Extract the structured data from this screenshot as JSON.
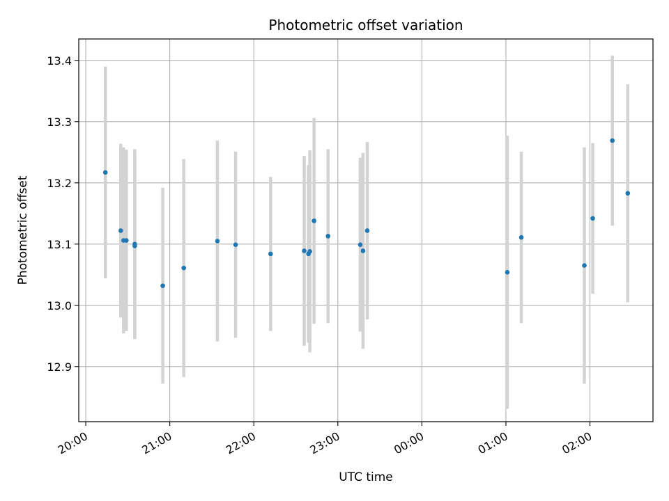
{
  "chart_data": {
    "type": "scatter",
    "title": "Photometric offset variation",
    "xlabel": "UTC time",
    "ylabel": "Photometric offset",
    "xlim": [
      "19:55",
      "02:45"
    ],
    "ylim": [
      12.81,
      13.435
    ],
    "x_ticks": [
      "20:00",
      "21:00",
      "22:00",
      "23:00",
      "00:00",
      "01:00",
      "02:00"
    ],
    "y_ticks": [
      12.9,
      13.0,
      13.1,
      13.2,
      13.3,
      13.4
    ],
    "y_tick_labels": [
      "12.9",
      "13.0",
      "13.1",
      "13.2",
      "13.3",
      "13.4"
    ],
    "grid": true,
    "colors": {
      "point": "#1f77b4",
      "errorbar": "#d3d3d3",
      "grid": "#b0b0b0"
    },
    "points": [
      {
        "x": "20:14",
        "y": 13.217,
        "err": 0.173
      },
      {
        "x": "20:25",
        "y": 13.122,
        "err": 0.142
      },
      {
        "x": "20:27",
        "y": 13.106,
        "err": 0.152
      },
      {
        "x": "20:29",
        "y": 13.106,
        "err": 0.148
      },
      {
        "x": "20:35",
        "y": 13.1,
        "err": 0.155
      },
      {
        "x": "20:35",
        "y": 13.097,
        "err": 0.15
      },
      {
        "x": "20:55",
        "y": 13.032,
        "err": 0.16
      },
      {
        "x": "21:10",
        "y": 13.061,
        "err": 0.178
      },
      {
        "x": "21:34",
        "y": 13.105,
        "err": 0.164
      },
      {
        "x": "21:47",
        "y": 13.099,
        "err": 0.152
      },
      {
        "x": "22:12",
        "y": 13.084,
        "err": 0.126
      },
      {
        "x": "22:36",
        "y": 13.089,
        "err": 0.155
      },
      {
        "x": "22:39",
        "y": 13.084,
        "err": 0.145
      },
      {
        "x": "22:40",
        "y": 13.088,
        "err": 0.165
      },
      {
        "x": "22:43",
        "y": 13.138,
        "err": 0.168
      },
      {
        "x": "22:53",
        "y": 13.113,
        "err": 0.142
      },
      {
        "x": "23:16",
        "y": 13.099,
        "err": 0.142
      },
      {
        "x": "23:18",
        "y": 13.089,
        "err": 0.16
      },
      {
        "x": "23:21",
        "y": 13.122,
        "err": 0.145
      },
      {
        "x": "01:01",
        "y": 13.054,
        "err": 0.223
      },
      {
        "x": "01:11",
        "y": 13.111,
        "err": 0.14
      },
      {
        "x": "01:56",
        "y": 13.065,
        "err": 0.193
      },
      {
        "x": "02:02",
        "y": 13.142,
        "err": 0.123
      },
      {
        "x": "02:16",
        "y": 13.269,
        "err": 0.139
      },
      {
        "x": "02:27",
        "y": 13.183,
        "err": 0.178
      }
    ]
  }
}
